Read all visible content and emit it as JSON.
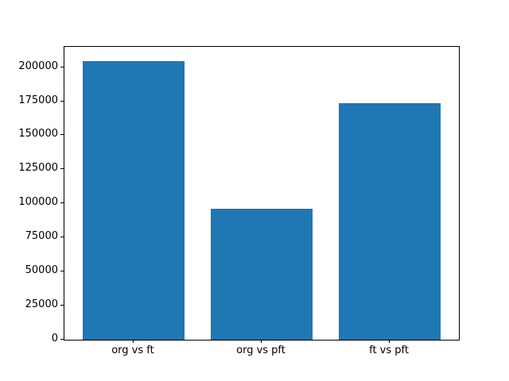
{
  "chart_data": {
    "type": "bar",
    "title": "",
    "xlabel": "",
    "ylabel": "",
    "categories": [
      "org vs ft",
      "org vs pft",
      "ft vs pft"
    ],
    "values": [
      204600,
      96000,
      173800
    ],
    "yticks": [
      0,
      25000,
      50000,
      75000,
      100000,
      125000,
      150000,
      175000,
      200000
    ],
    "ylim": [
      0,
      214900
    ],
    "grid": false,
    "legend": null,
    "bar_color": "#1f77b4",
    "axis_color": "#000000",
    "background_color": "#ffffff"
  }
}
